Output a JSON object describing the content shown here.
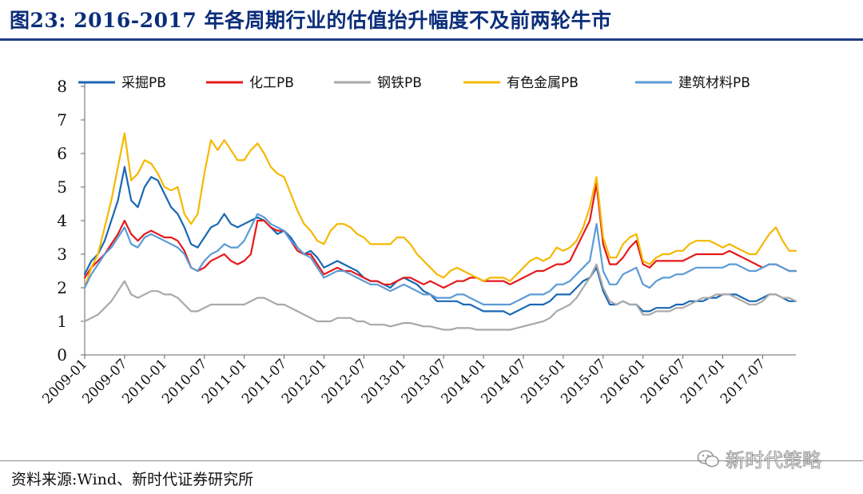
{
  "figure": {
    "title": "图23:   2016-2017 年各周期行业的估值抬升幅度不及前两轮牛市",
    "source": "资料来源:Wind、新时代证券研究所",
    "watermark": "新时代策略"
  },
  "chart_data": {
    "type": "line",
    "title": "",
    "xlabel": "",
    "ylabel": "",
    "ylim": [
      0,
      8
    ],
    "yticks": [
      "0",
      "1",
      "2",
      "3",
      "4",
      "5",
      "6",
      "7",
      "8"
    ],
    "xlim": [
      "2009-01",
      "2017-12"
    ],
    "xticks": [
      "2009-01",
      "2009-07",
      "2010-01",
      "2010-07",
      "2011-01",
      "2011-07",
      "2012-01",
      "2012-07",
      "2013-01",
      "2013-07",
      "2014-01",
      "2014-07",
      "2015-01",
      "2015-07",
      "2016-01",
      "2016-07",
      "2017-01",
      "2017-07"
    ],
    "grid": false,
    "legend_position": "top",
    "x": [
      "2009-01",
      "2009-02",
      "2009-03",
      "2009-04",
      "2009-05",
      "2009-06",
      "2009-07",
      "2009-08",
      "2009-09",
      "2009-10",
      "2009-11",
      "2009-12",
      "2010-01",
      "2010-02",
      "2010-03",
      "2010-04",
      "2010-05",
      "2010-06",
      "2010-07",
      "2010-08",
      "2010-09",
      "2010-10",
      "2010-11",
      "2010-12",
      "2011-01",
      "2011-02",
      "2011-03",
      "2011-04",
      "2011-05",
      "2011-06",
      "2011-07",
      "2011-08",
      "2011-09",
      "2011-10",
      "2011-11",
      "2011-12",
      "2012-01",
      "2012-02",
      "2012-03",
      "2012-04",
      "2012-05",
      "2012-06",
      "2012-07",
      "2012-08",
      "2012-09",
      "2012-10",
      "2012-11",
      "2012-12",
      "2013-01",
      "2013-02",
      "2013-03",
      "2013-04",
      "2013-05",
      "2013-06",
      "2013-07",
      "2013-08",
      "2013-09",
      "2013-10",
      "2013-11",
      "2013-12",
      "2014-01",
      "2014-02",
      "2014-03",
      "2014-04",
      "2014-05",
      "2014-06",
      "2014-07",
      "2014-08",
      "2014-09",
      "2014-10",
      "2014-11",
      "2014-12",
      "2015-01",
      "2015-02",
      "2015-03",
      "2015-04",
      "2015-05",
      "2015-06",
      "2015-07",
      "2015-08",
      "2015-09",
      "2015-10",
      "2015-11",
      "2015-12",
      "2016-01",
      "2016-02",
      "2016-03",
      "2016-04",
      "2016-05",
      "2016-06",
      "2016-07",
      "2016-08",
      "2016-09",
      "2016-10",
      "2016-11",
      "2016-12",
      "2017-01",
      "2017-02",
      "2017-03",
      "2017-04",
      "2017-05",
      "2017-06",
      "2017-07",
      "2017-08",
      "2017-09",
      "2017-10",
      "2017-11",
      "2017-12"
    ],
    "series": [
      {
        "name": "采掘PB",
        "color": "#1a68b4",
        "values": [
          2.4,
          2.8,
          3.0,
          3.4,
          4.0,
          4.6,
          5.6,
          4.6,
          4.4,
          5.0,
          5.3,
          5.2,
          4.8,
          4.4,
          4.2,
          3.8,
          3.3,
          3.2,
          3.5,
          3.8,
          3.9,
          4.2,
          3.9,
          3.8,
          3.9,
          4.0,
          4.1,
          4.0,
          3.8,
          3.6,
          3.7,
          3.5,
          3.2,
          3.0,
          3.1,
          2.9,
          2.6,
          2.7,
          2.8,
          2.7,
          2.6,
          2.5,
          2.3,
          2.2,
          2.2,
          2.1,
          2.0,
          2.2,
          2.3,
          2.2,
          2.1,
          1.9,
          1.8,
          1.6,
          1.6,
          1.6,
          1.6,
          1.5,
          1.5,
          1.4,
          1.3,
          1.3,
          1.3,
          1.3,
          1.2,
          1.3,
          1.4,
          1.5,
          1.5,
          1.5,
          1.6,
          1.8,
          1.8,
          1.8,
          2.0,
          2.2,
          2.3,
          2.6,
          1.9,
          1.5,
          1.5,
          1.6,
          1.5,
          1.5,
          1.3,
          1.3,
          1.4,
          1.4,
          1.4,
          1.5,
          1.5,
          1.6,
          1.6,
          1.6,
          1.7,
          1.7,
          1.8,
          1.8,
          1.8,
          1.7,
          1.6,
          1.6,
          1.7,
          1.8,
          1.8,
          1.7,
          1.6,
          1.6
        ]
      },
      {
        "name": "化工PB",
        "color": "#e41a1c",
        "values": [
          2.3,
          2.6,
          2.8,
          3.0,
          3.3,
          3.6,
          4.0,
          3.6,
          3.4,
          3.6,
          3.7,
          3.6,
          3.5,
          3.5,
          3.4,
          3.1,
          2.6,
          2.5,
          2.6,
          2.8,
          2.9,
          3.0,
          2.8,
          2.7,
          2.8,
          3.0,
          4.0,
          4.0,
          3.8,
          3.7,
          3.7,
          3.4,
          3.1,
          3.0,
          3.0,
          2.7,
          2.4,
          2.5,
          2.6,
          2.5,
          2.5,
          2.4,
          2.3,
          2.2,
          2.2,
          2.1,
          2.1,
          2.2,
          2.3,
          2.3,
          2.2,
          2.1,
          2.2,
          2.1,
          2.0,
          2.1,
          2.2,
          2.2,
          2.3,
          2.3,
          2.2,
          2.2,
          2.2,
          2.2,
          2.1,
          2.2,
          2.3,
          2.4,
          2.5,
          2.5,
          2.6,
          2.7,
          2.7,
          2.8,
          3.2,
          3.6,
          4.0,
          5.1,
          3.3,
          2.7,
          2.7,
          2.9,
          3.2,
          3.4,
          2.7,
          2.6,
          2.8,
          2.8,
          2.8,
          2.8,
          2.8,
          2.9,
          3.0,
          3.0,
          3.0,
          3.0,
          3.0,
          3.1,
          3.0,
          2.9,
          2.8,
          2.7,
          2.6,
          2.7,
          2.7,
          2.6,
          2.5,
          2.5
        ]
      },
      {
        "name": "钢铁PB",
        "color": "#a9a9a9",
        "values": [
          1.0,
          1.1,
          1.2,
          1.4,
          1.6,
          1.9,
          2.2,
          1.8,
          1.7,
          1.8,
          1.9,
          1.9,
          1.8,
          1.8,
          1.7,
          1.5,
          1.3,
          1.3,
          1.4,
          1.5,
          1.5,
          1.5,
          1.5,
          1.5,
          1.5,
          1.6,
          1.7,
          1.7,
          1.6,
          1.5,
          1.5,
          1.4,
          1.3,
          1.2,
          1.1,
          1.0,
          1.0,
          1.0,
          1.1,
          1.1,
          1.1,
          1.0,
          1.0,
          0.9,
          0.9,
          0.9,
          0.85,
          0.9,
          0.95,
          0.95,
          0.9,
          0.85,
          0.85,
          0.8,
          0.75,
          0.75,
          0.8,
          0.8,
          0.8,
          0.75,
          0.75,
          0.75,
          0.75,
          0.75,
          0.75,
          0.8,
          0.85,
          0.9,
          0.95,
          1.0,
          1.1,
          1.3,
          1.4,
          1.5,
          1.7,
          2.0,
          2.3,
          2.7,
          2.0,
          1.6,
          1.5,
          1.6,
          1.5,
          1.5,
          1.2,
          1.2,
          1.3,
          1.3,
          1.3,
          1.4,
          1.4,
          1.5,
          1.6,
          1.7,
          1.7,
          1.8,
          1.8,
          1.8,
          1.7,
          1.6,
          1.5,
          1.5,
          1.6,
          1.8,
          1.8,
          1.7,
          1.7,
          1.6
        ]
      },
      {
        "name": "有色金属PB",
        "color": "#f5b800",
        "values": [
          2.0,
          2.6,
          3.0,
          3.8,
          4.6,
          5.6,
          6.6,
          5.2,
          5.4,
          5.8,
          5.7,
          5.4,
          5.0,
          4.9,
          5.0,
          4.2,
          3.9,
          4.2,
          5.4,
          6.4,
          6.1,
          6.4,
          6.1,
          5.8,
          5.8,
          6.1,
          6.3,
          6.0,
          5.6,
          5.4,
          5.3,
          4.8,
          4.3,
          3.9,
          3.7,
          3.4,
          3.3,
          3.7,
          3.9,
          3.9,
          3.8,
          3.6,
          3.5,
          3.3,
          3.3,
          3.3,
          3.3,
          3.5,
          3.5,
          3.3,
          3.0,
          2.8,
          2.6,
          2.4,
          2.3,
          2.5,
          2.6,
          2.5,
          2.4,
          2.3,
          2.2,
          2.3,
          2.3,
          2.3,
          2.2,
          2.4,
          2.6,
          2.8,
          2.9,
          2.8,
          2.9,
          3.2,
          3.1,
          3.2,
          3.4,
          3.8,
          4.4,
          5.3,
          3.5,
          2.9,
          2.9,
          3.3,
          3.5,
          3.6,
          2.8,
          2.7,
          2.9,
          3.0,
          3.0,
          3.1,
          3.1,
          3.3,
          3.4,
          3.4,
          3.4,
          3.3,
          3.2,
          3.3,
          3.2,
          3.1,
          3.0,
          3.0,
          3.3,
          3.6,
          3.8,
          3.4,
          3.1,
          3.1
        ]
      },
      {
        "name": "建筑材料PB",
        "color": "#5b9bd5",
        "values": [
          2.0,
          2.4,
          2.7,
          3.0,
          3.2,
          3.5,
          3.8,
          3.3,
          3.2,
          3.5,
          3.6,
          3.5,
          3.4,
          3.3,
          3.2,
          3.0,
          2.6,
          2.5,
          2.8,
          3.0,
          3.1,
          3.3,
          3.2,
          3.2,
          3.4,
          3.8,
          4.2,
          4.1,
          3.9,
          3.8,
          3.7,
          3.4,
          3.2,
          3.0,
          2.9,
          2.6,
          2.3,
          2.4,
          2.5,
          2.5,
          2.4,
          2.3,
          2.2,
          2.1,
          2.1,
          2.0,
          1.9,
          2.0,
          2.1,
          2.0,
          1.9,
          1.8,
          1.8,
          1.7,
          1.7,
          1.7,
          1.8,
          1.8,
          1.7,
          1.6,
          1.5,
          1.5,
          1.5,
          1.5,
          1.5,
          1.6,
          1.7,
          1.8,
          1.8,
          1.8,
          1.9,
          2.1,
          2.1,
          2.2,
          2.4,
          2.6,
          2.8,
          3.9,
          2.5,
          2.1,
          2.1,
          2.4,
          2.5,
          2.6,
          2.1,
          2.0,
          2.2,
          2.3,
          2.3,
          2.4,
          2.4,
          2.5,
          2.6,
          2.6,
          2.6,
          2.6,
          2.6,
          2.7,
          2.7,
          2.6,
          2.5,
          2.5,
          2.6,
          2.7,
          2.7,
          2.6,
          2.5,
          2.5
        ]
      }
    ]
  }
}
